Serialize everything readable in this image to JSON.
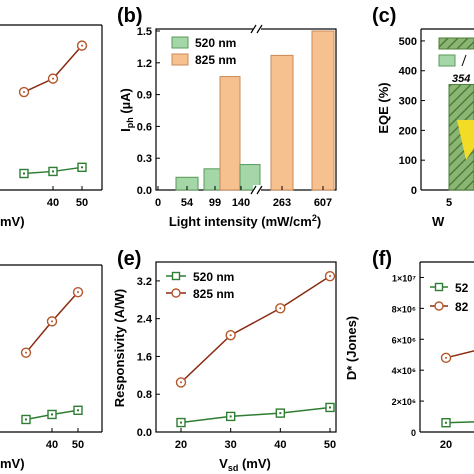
{
  "colors": {
    "green": "#2e7d32",
    "orange": "#b5572a",
    "orange_dark": "#8b2a12",
    "bar_green": "#a5d6a7",
    "bar_green_edge": "#5a9a5c",
    "bar_orange": "#f7c08f",
    "bar_orange_edge": "#c98a55",
    "hatch": "#4e7d3a",
    "hatch_bg": "#8bb573",
    "arrow_yellow": "#f2dc25"
  },
  "panels": {
    "a": {
      "label": "",
      "xlabel_partial": "mV)",
      "ticks_x": [
        "40",
        "50"
      ]
    },
    "b": {
      "label": "(b)",
      "ylabel": "I",
      "ylabel_sub": "ph",
      "ylabel_unit": " (µA)",
      "xlabel": "Light intensity (mW/cm",
      "xlabel_sup": "2",
      "xlabel_end": ")",
      "y_ticks": [
        "0.0",
        "0.3",
        "0.6",
        "0.9",
        "1.2",
        "1.5"
      ],
      "x_ticks": [
        "0",
        "54",
        "99",
        "140",
        "263",
        "607"
      ],
      "legend": [
        "520 nm",
        "825 nm"
      ]
    },
    "c": {
      "label": "(c)",
      "ylabel": "EQE (%)",
      "y_ticks": [
        "0",
        "100",
        "200",
        "300",
        "400",
        "500"
      ],
      "annotation": "354",
      "xlabel_partial": "W",
      "x_tick_partial": "5"
    },
    "d": {
      "xlabel_partial": "mV)",
      "ticks_x": [
        "40",
        "50"
      ]
    },
    "e": {
      "label": "(e)",
      "ylabel": "Responsivity (A/W)",
      "xlabel": "V",
      "xlabel_sub": "sd",
      "xlabel_unit": " (mV)",
      "y_ticks": [
        "0.0",
        "0.8",
        "1.6",
        "2.4",
        "3.2"
      ],
      "x_ticks": [
        "20",
        "30",
        "40",
        "50"
      ],
      "legend": [
        "520 nm",
        "825 nm"
      ]
    },
    "f": {
      "label": "(f)",
      "ylabel": "D* (Jones)",
      "y_ticks": [
        "0",
        "2×10⁶",
        "4×10⁶",
        "6×10⁶",
        "8×10⁶",
        "1×10⁷"
      ],
      "x_tick_partial": "20",
      "legend_partial": [
        "52",
        "82"
      ]
    }
  },
  "chart_data": [
    {
      "panel": "a",
      "type": "line",
      "x": [
        30,
        40,
        50
      ],
      "series": [
        {
          "name": "825 nm",
          "values": [
            0.95,
            1.08,
            1.4
          ]
        },
        {
          "name": "520 nm",
          "values": [
            0.16,
            0.18,
            0.22
          ]
        }
      ],
      "xlim": [
        25,
        52
      ],
      "ylim": [
        0,
        1.6
      ]
    },
    {
      "panel": "b",
      "type": "bar",
      "categories": [
        "54",
        "99",
        "140",
        "263",
        "607"
      ],
      "series": [
        {
          "name": "520 nm",
          "values": [
            0.12,
            0.2,
            0.24,
            null,
            null
          ]
        },
        {
          "name": "825 nm",
          "values": [
            null,
            null,
            1.07,
            1.27,
            1.5
          ]
        }
      ],
      "xlabel": "Light intensity (mW/cm2)",
      "ylabel": "Iph (µA)",
      "ylim": [
        0,
        1.5
      ]
    },
    {
      "panel": "c",
      "type": "bar",
      "categories": [
        "5"
      ],
      "values": [
        354
      ],
      "ylabel": "EQE (%)",
      "ylim": [
        0,
        500
      ]
    },
    {
      "panel": "d",
      "type": "line",
      "x": [
        30,
        40,
        50
      ],
      "series": [
        {
          "name": "825 nm",
          "values": [
            1.9,
            2.65,
            3.35
          ]
        },
        {
          "name": "520 nm",
          "values": [
            0.3,
            0.42,
            0.52
          ]
        }
      ],
      "xlim": [
        25,
        52
      ],
      "ylim": [
        0,
        4.0
      ]
    },
    {
      "panel": "e",
      "type": "line",
      "x": [
        20,
        30,
        40,
        50
      ],
      "series": [
        {
          "name": "520 nm",
          "values": [
            0.2,
            0.33,
            0.4,
            0.52
          ]
        },
        {
          "name": "825 nm",
          "values": [
            1.05,
            2.05,
            2.62,
            3.3
          ]
        }
      ],
      "xlabel": "Vsd (mV)",
      "ylabel": "Responsivity (A/W)",
      "ylim": [
        0,
        3.6
      ]
    },
    {
      "panel": "f",
      "type": "line",
      "x": [
        20,
        30
      ],
      "series": [
        {
          "name": "520 nm",
          "values": [
            600000,
            700000
          ]
        },
        {
          "name": "825 nm",
          "values": [
            4800000,
            5600000
          ]
        }
      ],
      "ylabel": "D* (Jones)",
      "ylim": [
        0,
        10000000
      ]
    }
  ]
}
